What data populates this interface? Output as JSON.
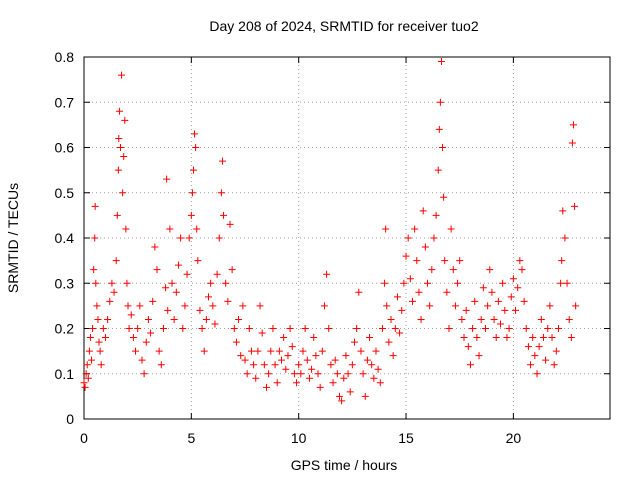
{
  "chart_data": {
    "type": "scatter",
    "title": "Day 208 of 2024, SRMTID for receiver tuo2",
    "xlabel": "GPS time / hours",
    "ylabel": "SRMTID / TECUs",
    "xlim": [
      0,
      24.5
    ],
    "ylim": [
      0,
      0.8
    ],
    "xticks": [
      0,
      5,
      10,
      15,
      20
    ],
    "xtick_labels": [
      "0",
      "5",
      "10",
      "15",
      "20"
    ],
    "yticks": [
      0,
      0.1,
      0.2,
      0.3,
      0.4,
      0.5,
      0.6,
      0.7,
      0.8
    ],
    "ytick_labels": [
      "0",
      "0.1",
      "0.2",
      "0.3",
      "0.4",
      "0.5",
      "0.6",
      "0.7",
      "0.8"
    ],
    "grid": true,
    "marker": "plus",
    "color": "#ff0000",
    "series": [
      {
        "name": "SRMTID",
        "points": [
          [
            0.0,
            0.08
          ],
          [
            0.05,
            0.07
          ],
          [
            0.1,
            0.1
          ],
          [
            0.15,
            0.12
          ],
          [
            0.2,
            0.09
          ],
          [
            0.25,
            0.15
          ],
          [
            0.3,
            0.18
          ],
          [
            0.35,
            0.13
          ],
          [
            0.4,
            0.2
          ],
          [
            0.45,
            0.33
          ],
          [
            0.5,
            0.4
          ],
          [
            0.52,
            0.47
          ],
          [
            0.55,
            0.3
          ],
          [
            0.6,
            0.25
          ],
          [
            0.65,
            0.22
          ],
          [
            0.7,
            0.17
          ],
          [
            0.75,
            0.15
          ],
          [
            0.8,
            0.12
          ],
          [
            0.9,
            0.2
          ],
          [
            1.0,
            0.18
          ],
          [
            1.1,
            0.22
          ],
          [
            1.2,
            0.26
          ],
          [
            1.3,
            0.3
          ],
          [
            1.4,
            0.28
          ],
          [
            1.5,
            0.35
          ],
          [
            1.55,
            0.45
          ],
          [
            1.6,
            0.55
          ],
          [
            1.62,
            0.62
          ],
          [
            1.65,
            0.68
          ],
          [
            1.7,
            0.6
          ],
          [
            1.75,
            0.76
          ],
          [
            1.8,
            0.5
          ],
          [
            1.85,
            0.58
          ],
          [
            1.9,
            0.66
          ],
          [
            1.95,
            0.42
          ],
          [
            2.0,
            0.3
          ],
          [
            2.05,
            0.25
          ],
          [
            2.1,
            0.2
          ],
          [
            2.2,
            0.23
          ],
          [
            2.3,
            0.18
          ],
          [
            2.4,
            0.15
          ],
          [
            2.5,
            0.2
          ],
          [
            2.6,
            0.25
          ],
          [
            2.7,
            0.13
          ],
          [
            2.8,
            0.1
          ],
          [
            2.9,
            0.17
          ],
          [
            3.0,
            0.22
          ],
          [
            3.1,
            0.19
          ],
          [
            3.2,
            0.26
          ],
          [
            3.3,
            0.38
          ],
          [
            3.4,
            0.33
          ],
          [
            3.5,
            0.15
          ],
          [
            3.6,
            0.12
          ],
          [
            3.7,
            0.2
          ],
          [
            3.8,
            0.29
          ],
          [
            3.85,
            0.53
          ],
          [
            3.9,
            0.24
          ],
          [
            4.0,
            0.42
          ],
          [
            4.1,
            0.3
          ],
          [
            4.2,
            0.22
          ],
          [
            4.3,
            0.28
          ],
          [
            4.4,
            0.34
          ],
          [
            4.5,
            0.4
          ],
          [
            4.6,
            0.2
          ],
          [
            4.7,
            0.25
          ],
          [
            4.8,
            0.32
          ],
          [
            4.9,
            0.4
          ],
          [
            5.0,
            0.45
          ],
          [
            5.05,
            0.5
          ],
          [
            5.1,
            0.55
          ],
          [
            5.15,
            0.63
          ],
          [
            5.2,
            0.6
          ],
          [
            5.25,
            0.42
          ],
          [
            5.3,
            0.35
          ],
          [
            5.4,
            0.24
          ],
          [
            5.5,
            0.2
          ],
          [
            5.6,
            0.15
          ],
          [
            5.7,
            0.22
          ],
          [
            5.8,
            0.27
          ],
          [
            5.9,
            0.3
          ],
          [
            6.0,
            0.25
          ],
          [
            6.1,
            0.21
          ],
          [
            6.2,
            0.32
          ],
          [
            6.3,
            0.4
          ],
          [
            6.4,
            0.5
          ],
          [
            6.45,
            0.57
          ],
          [
            6.5,
            0.45
          ],
          [
            6.6,
            0.3
          ],
          [
            6.7,
            0.26
          ],
          [
            6.8,
            0.43
          ],
          [
            6.9,
            0.33
          ],
          [
            7.0,
            0.2
          ],
          [
            7.1,
            0.17
          ],
          [
            7.2,
            0.22
          ],
          [
            7.3,
            0.14
          ],
          [
            7.4,
            0.25
          ],
          [
            7.5,
            0.13
          ],
          [
            7.6,
            0.1
          ],
          [
            7.7,
            0.2
          ],
          [
            7.8,
            0.15
          ],
          [
            7.9,
            0.12
          ],
          [
            8.0,
            0.09
          ],
          [
            8.1,
            0.15
          ],
          [
            8.2,
            0.25
          ],
          [
            8.3,
            0.19
          ],
          [
            8.4,
            0.12
          ],
          [
            8.5,
            0.07
          ],
          [
            8.6,
            0.1
          ],
          [
            8.7,
            0.15
          ],
          [
            8.8,
            0.2
          ],
          [
            8.9,
            0.12
          ],
          [
            9.0,
            0.08
          ],
          [
            9.1,
            0.15
          ],
          [
            9.2,
            0.13
          ],
          [
            9.3,
            0.18
          ],
          [
            9.4,
            0.11
          ],
          [
            9.5,
            0.14
          ],
          [
            9.6,
            0.2
          ],
          [
            9.7,
            0.16
          ],
          [
            9.8,
            0.1
          ],
          [
            9.9,
            0.08
          ],
          [
            10.0,
            0.12
          ],
          [
            10.1,
            0.1
          ],
          [
            10.2,
            0.15
          ],
          [
            10.3,
            0.2
          ],
          [
            10.4,
            0.13
          ],
          [
            10.5,
            0.09
          ],
          [
            10.6,
            0.11
          ],
          [
            10.7,
            0.18
          ],
          [
            10.8,
            0.14
          ],
          [
            10.9,
            0.1
          ],
          [
            11.0,
            0.07
          ],
          [
            11.1,
            0.15
          ],
          [
            11.2,
            0.25
          ],
          [
            11.3,
            0.32
          ],
          [
            11.4,
            0.2
          ],
          [
            11.5,
            0.12
          ],
          [
            11.6,
            0.08
          ],
          [
            11.7,
            0.13
          ],
          [
            11.8,
            0.1
          ],
          [
            11.9,
            0.05
          ],
          [
            12.0,
            0.04
          ],
          [
            12.1,
            0.09
          ],
          [
            12.2,
            0.14
          ],
          [
            12.3,
            0.1
          ],
          [
            12.4,
            0.06
          ],
          [
            12.5,
            0.12
          ],
          [
            12.6,
            0.17
          ],
          [
            12.7,
            0.2
          ],
          [
            12.8,
            0.28
          ],
          [
            12.9,
            0.15
          ],
          [
            13.0,
            0.1
          ],
          [
            13.1,
            0.05
          ],
          [
            13.2,
            0.13
          ],
          [
            13.3,
            0.18
          ],
          [
            13.4,
            0.12
          ],
          [
            13.5,
            0.09
          ],
          [
            13.6,
            0.15
          ],
          [
            13.7,
            0.11
          ],
          [
            13.8,
            0.08
          ],
          [
            13.9,
            0.2
          ],
          [
            14.0,
            0.3
          ],
          [
            14.05,
            0.42
          ],
          [
            14.1,
            0.25
          ],
          [
            14.2,
            0.17
          ],
          [
            14.3,
            0.22
          ],
          [
            14.4,
            0.14
          ],
          [
            14.5,
            0.2
          ],
          [
            14.6,
            0.27
          ],
          [
            14.7,
            0.19
          ],
          [
            14.8,
            0.24
          ],
          [
            14.9,
            0.3
          ],
          [
            15.0,
            0.36
          ],
          [
            15.1,
            0.4
          ],
          [
            15.2,
            0.31
          ],
          [
            15.3,
            0.26
          ],
          [
            15.4,
            0.42
          ],
          [
            15.5,
            0.35
          ],
          [
            15.6,
            0.28
          ],
          [
            15.7,
            0.22
          ],
          [
            15.8,
            0.46
          ],
          [
            15.9,
            0.38
          ],
          [
            16.0,
            0.3
          ],
          [
            16.1,
            0.25
          ],
          [
            16.2,
            0.33
          ],
          [
            16.3,
            0.4
          ],
          [
            16.4,
            0.45
          ],
          [
            16.5,
            0.55
          ],
          [
            16.55,
            0.64
          ],
          [
            16.6,
            0.7
          ],
          [
            16.65,
            0.79
          ],
          [
            16.7,
            0.6
          ],
          [
            16.75,
            0.49
          ],
          [
            16.8,
            0.35
          ],
          [
            16.9,
            0.28
          ],
          [
            17.0,
            0.2
          ],
          [
            17.1,
            0.42
          ],
          [
            17.2,
            0.33
          ],
          [
            17.3,
            0.25
          ],
          [
            17.4,
            0.3
          ],
          [
            17.5,
            0.35
          ],
          [
            17.6,
            0.22
          ],
          [
            17.7,
            0.18
          ],
          [
            17.8,
            0.24
          ],
          [
            17.9,
            0.16
          ],
          [
            18.0,
            0.12
          ],
          [
            18.1,
            0.2
          ],
          [
            18.2,
            0.26
          ],
          [
            18.3,
            0.18
          ],
          [
            18.4,
            0.14
          ],
          [
            18.5,
            0.22
          ],
          [
            18.6,
            0.29
          ],
          [
            18.7,
            0.2
          ],
          [
            18.8,
            0.25
          ],
          [
            18.9,
            0.33
          ],
          [
            19.0,
            0.28
          ],
          [
            19.1,
            0.22
          ],
          [
            19.2,
            0.18
          ],
          [
            19.3,
            0.26
          ],
          [
            19.4,
            0.21
          ],
          [
            19.5,
            0.3
          ],
          [
            19.6,
            0.24
          ],
          [
            19.7,
            0.18
          ],
          [
            19.8,
            0.2
          ],
          [
            19.9,
            0.27
          ],
          [
            20.0,
            0.31
          ],
          [
            20.1,
            0.24
          ],
          [
            20.2,
            0.29
          ],
          [
            20.3,
            0.35
          ],
          [
            20.4,
            0.33
          ],
          [
            20.5,
            0.26
          ],
          [
            20.6,
            0.2
          ],
          [
            20.7,
            0.16
          ],
          [
            20.8,
            0.12
          ],
          [
            20.9,
            0.18
          ],
          [
            21.0,
            0.14
          ],
          [
            21.1,
            0.1
          ],
          [
            21.2,
            0.16
          ],
          [
            21.3,
            0.22
          ],
          [
            21.4,
            0.18
          ],
          [
            21.5,
            0.13
          ],
          [
            21.6,
            0.2
          ],
          [
            21.7,
            0.25
          ],
          [
            21.8,
            0.18
          ],
          [
            21.9,
            0.12
          ],
          [
            22.0,
            0.15
          ],
          [
            22.1,
            0.2
          ],
          [
            22.2,
            0.3
          ],
          [
            22.25,
            0.35
          ],
          [
            22.3,
            0.46
          ],
          [
            22.4,
            0.4
          ],
          [
            22.5,
            0.3
          ],
          [
            22.6,
            0.22
          ],
          [
            22.7,
            0.18
          ],
          [
            22.75,
            0.61
          ],
          [
            22.8,
            0.65
          ],
          [
            22.85,
            0.47
          ],
          [
            22.9,
            0.25
          ]
        ]
      }
    ]
  }
}
